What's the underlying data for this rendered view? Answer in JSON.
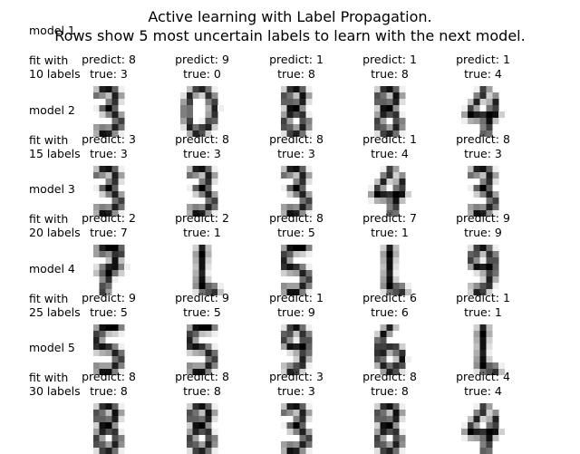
{
  "figure": {
    "title_line1": "Active learning with Label Propagation.",
    "title_line2": "Rows show 5 most uncertain labels to learn with the next model."
  },
  "rows": [
    {
      "model_label": "model 1",
      "fit_label": [
        "fit with",
        "10 labels"
      ],
      "cells": [
        {
          "predict": "predict: 8",
          "true": "true: 3",
          "digit": 3
        },
        {
          "predict": "predict: 9",
          "true": "true: 0",
          "digit": 0
        },
        {
          "predict": "predict: 1",
          "true": "true: 8",
          "digit": 8
        },
        {
          "predict": "predict: 1",
          "true": "true: 8",
          "digit": 8
        },
        {
          "predict": "predict: 1",
          "true": "true: 4",
          "digit": 4
        }
      ]
    },
    {
      "model_label": "model 2",
      "fit_label": [
        "fit with",
        "15 labels"
      ],
      "cells": [
        {
          "predict": "predict: 3",
          "true": "true: 3",
          "digit": 3
        },
        {
          "predict": "predict: 8",
          "true": "true: 3",
          "digit": 3
        },
        {
          "predict": "predict: 8",
          "true": "true: 3",
          "digit": 3
        },
        {
          "predict": "predict: 1",
          "true": "true: 4",
          "digit": 4
        },
        {
          "predict": "predict: 8",
          "true": "true: 3",
          "digit": 3
        }
      ]
    },
    {
      "model_label": "model 3",
      "fit_label": [
        "fit with",
        "20 labels"
      ],
      "cells": [
        {
          "predict": "predict: 2",
          "true": "true: 7",
          "digit": 7
        },
        {
          "predict": "predict: 2",
          "true": "true: 1",
          "digit": 1
        },
        {
          "predict": "predict: 8",
          "true": "true: 5",
          "digit": 5
        },
        {
          "predict": "predict: 7",
          "true": "true: 1",
          "digit": 1
        },
        {
          "predict": "predict: 9",
          "true": "true: 9",
          "digit": 9
        }
      ]
    },
    {
      "model_label": "model 4",
      "fit_label": [
        "fit with",
        "25 labels"
      ],
      "cells": [
        {
          "predict": "predict: 9",
          "true": "true: 5",
          "digit": 5
        },
        {
          "predict": "predict: 9",
          "true": "true: 5",
          "digit": 5
        },
        {
          "predict": "predict: 1",
          "true": "true: 9",
          "digit": 9
        },
        {
          "predict": "predict: 6",
          "true": "true: 6",
          "digit": 6
        },
        {
          "predict": "predict: 1",
          "true": "true: 1",
          "digit": 1
        }
      ]
    },
    {
      "model_label": "model 5",
      "fit_label": [
        "fit with",
        "30 labels"
      ],
      "cells": [
        {
          "predict": "predict: 8",
          "true": "true: 8",
          "digit": 8
        },
        {
          "predict": "predict: 8",
          "true": "true: 8",
          "digit": 8
        },
        {
          "predict": "predict: 3",
          "true": "true: 3",
          "digit": 3
        },
        {
          "predict": "predict: 8",
          "true": "true: 8",
          "digit": 8
        },
        {
          "predict": "predict: 4",
          "true": "true: 4",
          "digit": 4
        }
      ]
    }
  ]
}
